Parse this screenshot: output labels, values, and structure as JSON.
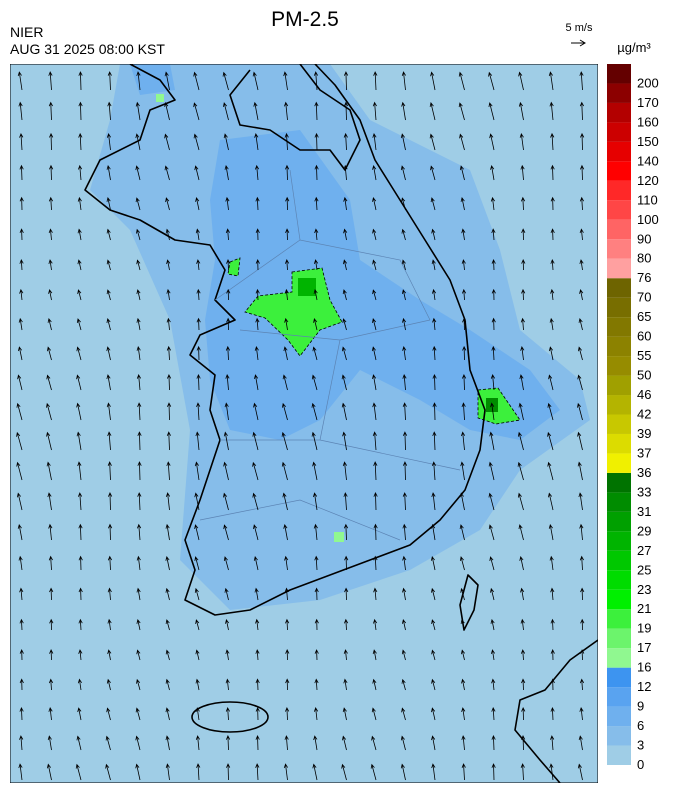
{
  "header": {
    "title": "PM-2.5",
    "agency": "NIER",
    "time": "AUG 31 2025 08:00 KST",
    "wind_scale": "5 m/s"
  },
  "colorbar": {
    "unit": "µg/m³",
    "levels": [
      0,
      3,
      6,
      9,
      12,
      16,
      17,
      19,
      21,
      23,
      25,
      27,
      29,
      31,
      33,
      36,
      37,
      39,
      42,
      46,
      50,
      55,
      60,
      65,
      70,
      76,
      80,
      90,
      100,
      110,
      120,
      140,
      150,
      160,
      170,
      200
    ],
    "colors": [
      "#9fcde6",
      "#86bdea",
      "#6fb0ee",
      "#59a3f0",
      "#3d94f0",
      "#90f890",
      "#6cf46c",
      "#3cf03c",
      "#00f000",
      "#00dc00",
      "#00c800",
      "#00b400",
      "#00a000",
      "#008c00",
      "#007300",
      "#f0f000",
      "#dcdc00",
      "#c8c800",
      "#b4b400",
      "#a0a000",
      "#968c00",
      "#8c8200",
      "#827800",
      "#786e00",
      "#6e6400",
      "#ffa0a0",
      "#ff8080",
      "#ff6464",
      "#ff4646",
      "#ff2828",
      "#ff0000",
      "#e60000",
      "#cc0000",
      "#b30000",
      "#8c0000",
      "#640000"
    ]
  }
}
